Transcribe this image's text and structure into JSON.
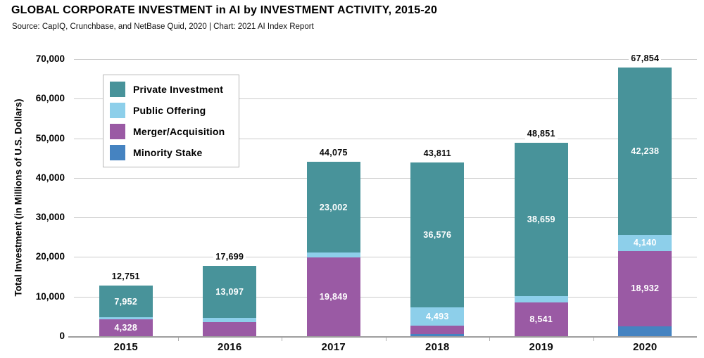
{
  "chart_data": {
    "type": "bar",
    "stacked": true,
    "title": "GLOBAL CORPORATE INVESTMENT in AI by INVESTMENT ACTIVITY, 2015-20",
    "source": "Source: CapIQ, Crunchbase, and NetBase Quid, 2020 | Chart: 2021 AI Index Report",
    "ylabel": "Total Investment (in Millions of U.S. Dollars)",
    "categories": [
      "2015",
      "2016",
      "2017",
      "2018",
      "2019",
      "2020"
    ],
    "series": [
      {
        "name": "Minority Stake",
        "color": "#4583c1",
        "values": [
          0,
          0,
          0,
          450,
          0,
          2544
        ],
        "labels": [
          null,
          null,
          null,
          null,
          null,
          null
        ]
      },
      {
        "name": "Merger/Acquisition",
        "color": "#9a5aa4",
        "values": [
          4328,
          3602,
          19849,
          2292,
          8541,
          18932
        ],
        "labels": [
          "4,328",
          null,
          "19,849",
          null,
          "8,541",
          "18,932"
        ]
      },
      {
        "name": "Public Offering",
        "color": "#8dcfea",
        "values": [
          471,
          1000,
          1224,
          4493,
          1651,
          4140
        ],
        "labels": [
          null,
          null,
          null,
          "4,493",
          null,
          "4,140"
        ]
      },
      {
        "name": "Private Investment",
        "color": "#48939a",
        "values": [
          7952,
          13097,
          23002,
          36576,
          38659,
          42238
        ],
        "labels": [
          "7,952",
          "13,097",
          "23,002",
          "36,576",
          "38,659",
          "42,238"
        ]
      }
    ],
    "totals": [
      "12,751",
      "17,699",
      "44,075",
      "43,811",
      "48,851",
      "67,854"
    ],
    "ylim": [
      0,
      70000
    ],
    "yticks": [
      0,
      10000,
      20000,
      30000,
      40000,
      50000,
      60000,
      70000
    ],
    "ytick_labels": [
      "0",
      "10,000",
      "20,000",
      "30,000",
      "40,000",
      "50,000",
      "60,000",
      "70,000"
    ],
    "legend": [
      "Private Investment",
      "Public Offering",
      "Merger/Acquisition",
      "Minority Stake"
    ],
    "legend_position": "upper-left",
    "grid": true
  }
}
